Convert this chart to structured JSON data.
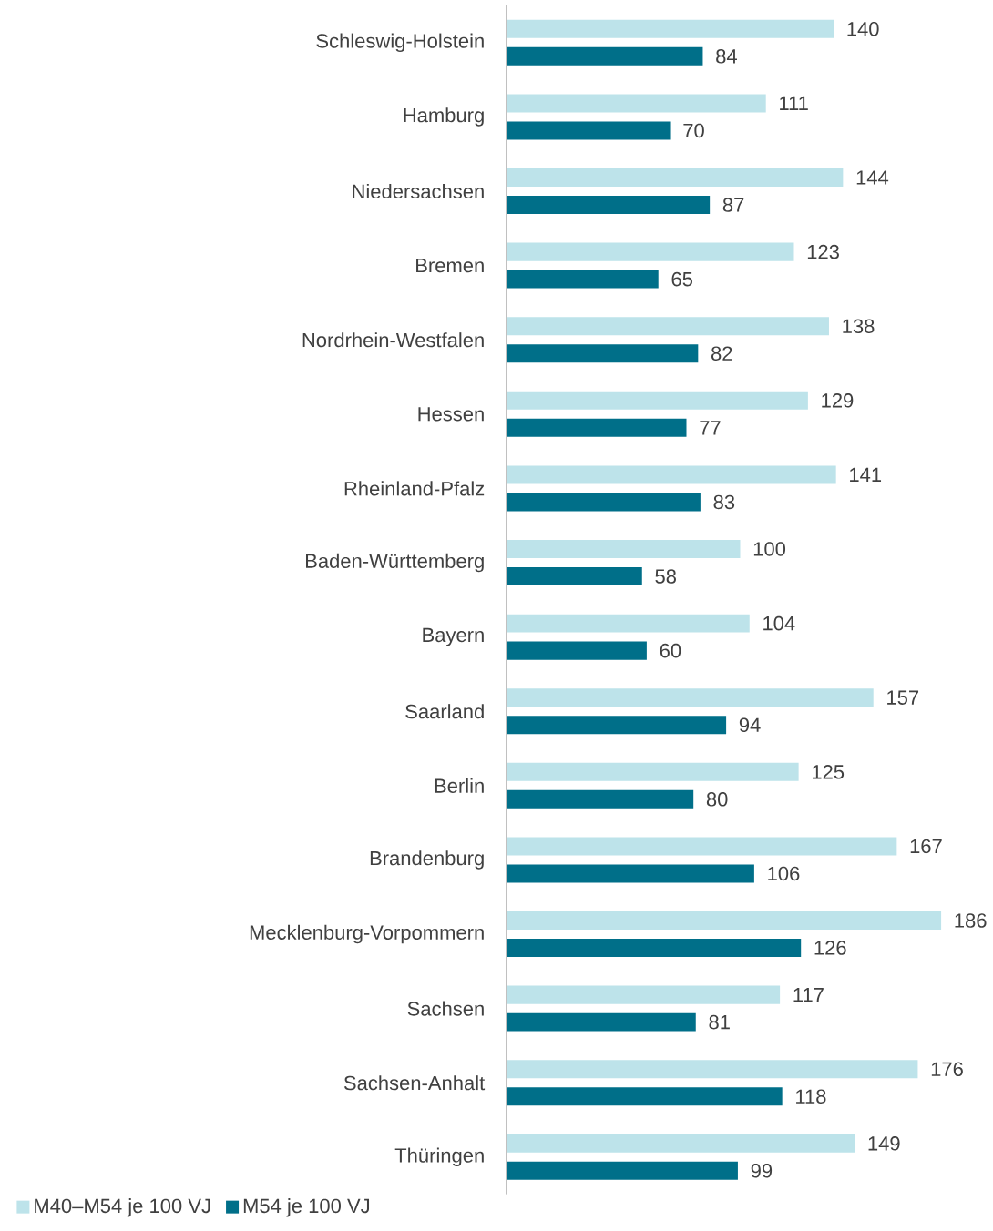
{
  "chart_data": {
    "type": "bar",
    "orientation": "horizontal",
    "categories": [
      "Schleswig-Holstein",
      "Hamburg",
      "Niedersachsen",
      "Bremen",
      "Nordrhein-Westfalen",
      "Hessen",
      "Rheinland-Pfalz",
      "Baden-Württemberg",
      "Bayern",
      "Saarland",
      "Berlin",
      "Brandenburg",
      "Mecklenburg-Vorpommern",
      "Sachsen",
      "Sachsen-Anhalt",
      "Thüringen"
    ],
    "series": [
      {
        "name": "M40–M54 je 100 VJ",
        "color": "#bde3ea",
        "values": [
          140,
          111,
          144,
          123,
          138,
          129,
          141,
          100,
          104,
          157,
          125,
          167,
          186,
          117,
          176,
          149
        ]
      },
      {
        "name": "M54 je 100 VJ",
        "color": "#006f89",
        "values": [
          84,
          70,
          87,
          65,
          82,
          77,
          83,
          58,
          60,
          94,
          80,
          106,
          126,
          81,
          118,
          99
        ]
      }
    ],
    "data_labels": true,
    "legend": "bottom left"
  }
}
